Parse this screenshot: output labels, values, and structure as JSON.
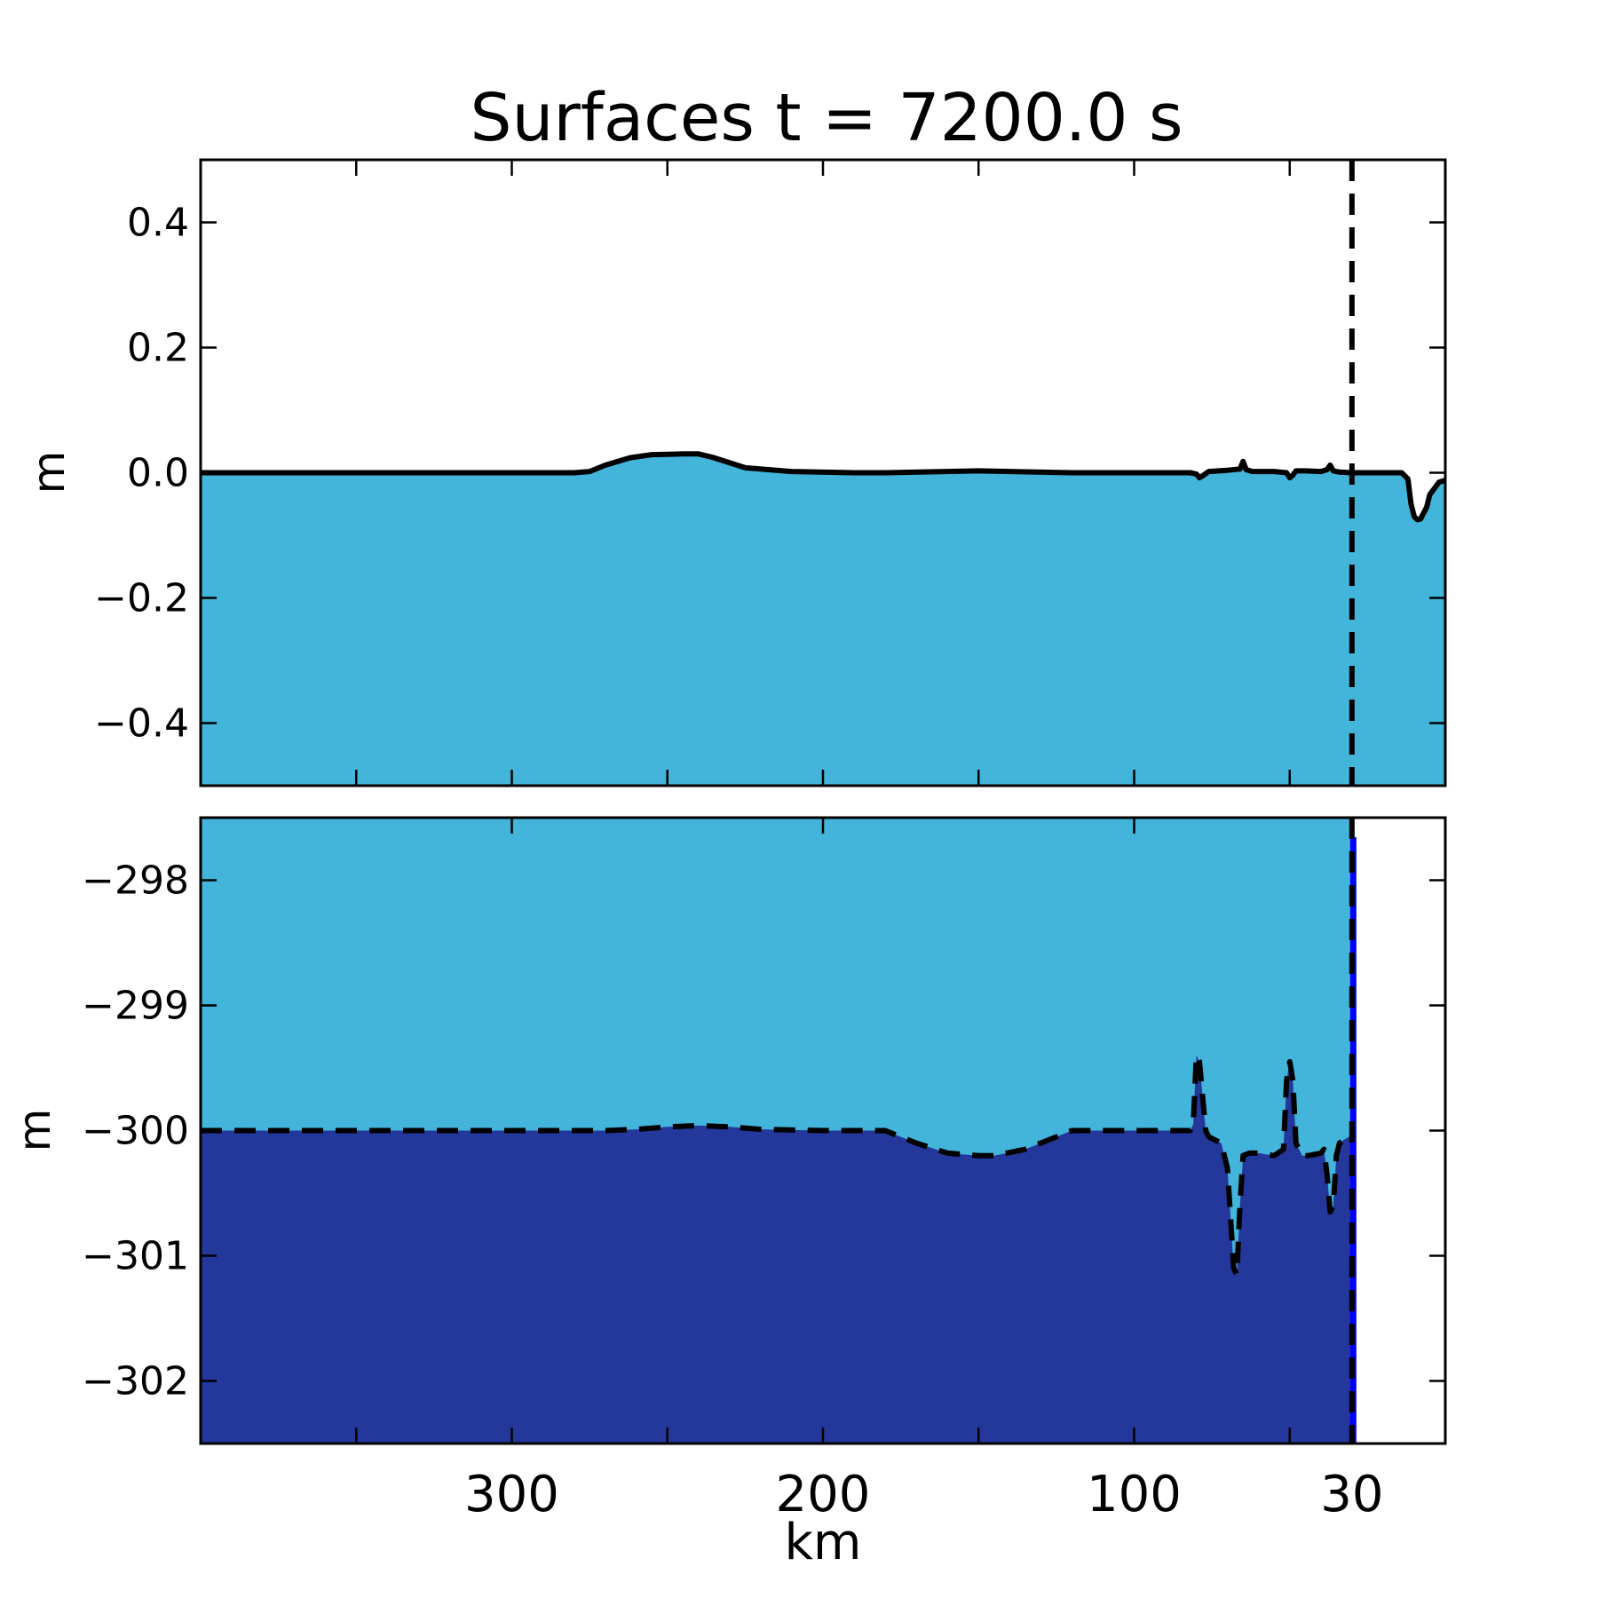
{
  "title": "Surfaces t = 7200.0 s",
  "colors": {
    "water": "#43b4da",
    "lower_layer": "#24379b",
    "bright_edge": "#0000ff",
    "line": "#000000",
    "background": "#ffffff"
  },
  "chart_data": [
    {
      "type": "area",
      "panel": "top",
      "ylabel": "m",
      "xlabel": "",
      "xlim": [
        400,
        0
      ],
      "ylim": [
        -0.5,
        0.5
      ],
      "yticks": [
        0.4,
        0.2,
        0.0,
        -0.2,
        -0.4
      ],
      "ytick_labels": [
        "0.4",
        "0.2",
        "0.0",
        "−0.2",
        "−0.4"
      ],
      "xticks_minor": [
        350,
        300,
        250,
        200,
        150,
        100,
        50
      ],
      "grid": false,
      "fill": "water below surface",
      "series": [
        {
          "style": "solid",
          "x": [
            400,
            280,
            275,
            270,
            262,
            255,
            245,
            240,
            235,
            225,
            210,
            190,
            180,
            150,
            120,
            100,
            90,
            82,
            80,
            79,
            78,
            76,
            70,
            66,
            65,
            64,
            62,
            55,
            51,
            50,
            49,
            48,
            45,
            40,
            38,
            37,
            36,
            34,
            30,
            25,
            20,
            14,
            12,
            11,
            10,
            9,
            8,
            6,
            5,
            2,
            0
          ],
          "y": [
            0,
            0,
            0.002,
            0.012,
            0.024,
            0.029,
            0.03,
            0.03,
            0.024,
            0.008,
            0.002,
            0.0,
            0.0,
            0.003,
            0.0,
            0.0,
            0.0,
            0.0,
            -0.002,
            -0.008,
            -0.005,
            0.002,
            0.004,
            0.006,
            0.018,
            0.005,
            0.002,
            0.002,
            0.0,
            -0.008,
            -0.004,
            0.003,
            0.003,
            0.002,
            0.005,
            0.012,
            0.003,
            0.001,
            0.0,
            0.0,
            0.0,
            0.0,
            -0.01,
            -0.05,
            -0.07,
            -0.075,
            -0.074,
            -0.055,
            -0.035,
            -0.015,
            -0.012
          ]
        },
        {
          "style": "dashed",
          "x": [
            30,
            30
          ],
          "y": [
            -0.5,
            0.5
          ]
        }
      ]
    },
    {
      "type": "area",
      "panel": "bottom",
      "ylabel": "m",
      "xlabel": "km",
      "xlim": [
        400,
        0
      ],
      "ylim": [
        -302.5,
        -297.5
      ],
      "yticks": [
        -298,
        -299,
        -300,
        -301,
        -302
      ],
      "ytick_labels": [
        "−298",
        "−299",
        "−300",
        "−301",
        "−302"
      ],
      "xticks": [
        300,
        200,
        100,
        30
      ],
      "xtick_labels": [
        "300",
        "200",
        "100",
        "30"
      ],
      "grid": false,
      "fill": "water above interface, lower layer below interface, dry right of x = 30",
      "series": [
        {
          "style": "dashed",
          "x": [
            400,
            330,
            300,
            270,
            260,
            250,
            240,
            230,
            220,
            200,
            185,
            180,
            170,
            160,
            150,
            145,
            135,
            120,
            100,
            90,
            82,
            81,
            80,
            79,
            77,
            76,
            72,
            70,
            68,
            67,
            66,
            65,
            63,
            60,
            55,
            52,
            51,
            50,
            49,
            48,
            46,
            44,
            40,
            39,
            38,
            37,
            36,
            35,
            34,
            33,
            31,
            30
          ],
          "y": [
            -300.0,
            -300.0,
            -300.0,
            -300.0,
            -299.99,
            -299.97,
            -299.96,
            -299.97,
            -299.99,
            -300.0,
            -300.0,
            -300.0,
            -300.1,
            -300.18,
            -300.2,
            -300.2,
            -300.15,
            -300.0,
            -300.0,
            -300.0,
            -300.0,
            -299.95,
            -299.4,
            -299.45,
            -300.0,
            -300.05,
            -300.1,
            -300.3,
            -301.1,
            -301.15,
            -300.6,
            -300.2,
            -300.18,
            -300.18,
            -300.2,
            -300.15,
            -299.6,
            -299.45,
            -299.6,
            -300.1,
            -300.2,
            -300.2,
            -300.18,
            -300.15,
            -300.35,
            -300.65,
            -300.6,
            -300.2,
            -300.1,
            -300.08,
            -300.05,
            -300.05
          ]
        },
        {
          "style": "dashed",
          "x": [
            30,
            30
          ],
          "y": [
            -302.5,
            -297.5
          ]
        }
      ]
    }
  ]
}
